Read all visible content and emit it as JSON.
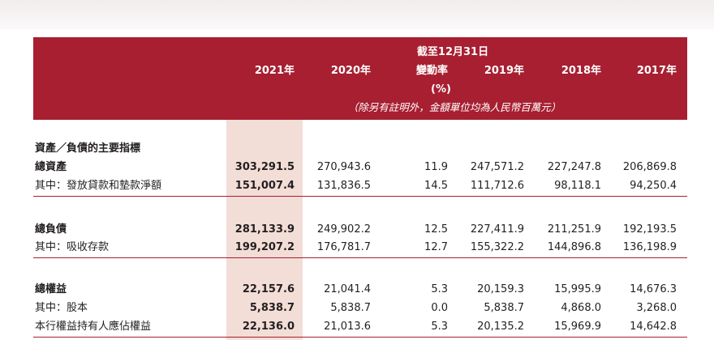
{
  "header": {
    "period_label": "截至12月31日",
    "columns": [
      "2021年",
      "2020年",
      "變動率",
      "2019年",
      "2018年",
      "2017年"
    ],
    "change_unit": "(%)",
    "currency_note": "（除另有註明外，金額單位均為人民幣百萬元）"
  },
  "section_title": "資產／負債的主要指標",
  "rows": [
    {
      "label": "總資產",
      "values": [
        "303,291.5",
        "270,943.6",
        "11.9",
        "247,571.2",
        "227,247.8",
        "206,869.8"
      ]
    },
    {
      "label": "其中：發放貸款和墊款淨額",
      "values": [
        "151,007.4",
        "131,836.5",
        "14.5",
        "111,712.6",
        "98,118.1",
        "94,250.4"
      ]
    },
    {
      "label": "總負債",
      "values": [
        "281,133.9",
        "249,902.2",
        "12.5",
        "227,411.9",
        "211,251.9",
        "192,193.5"
      ]
    },
    {
      "label": "其中：吸收存款",
      "values": [
        "199,207.2",
        "176,781.7",
        "12.7",
        "155,322.2",
        "144,896.8",
        "136,198.9"
      ]
    },
    {
      "label": "總權益",
      "values": [
        "22,157.6",
        "21,041.4",
        "5.3",
        "20,159.3",
        "15,995.9",
        "14,676.3"
      ]
    },
    {
      "label": "其中：股本",
      "values": [
        "5,838.7",
        "5,838.7",
        "0.0",
        "5,838.7",
        "4,868.0",
        "3,268.0"
      ]
    },
    {
      "label": "本行權益持有人應佔權益",
      "values": [
        "22,136.0",
        "21,013.6",
        "5.3",
        "20,135.2",
        "15,969.9",
        "14,642.8"
      ]
    }
  ],
  "colors": {
    "accent": "#a71f31",
    "highlight_column": "#f3ddd7"
  }
}
